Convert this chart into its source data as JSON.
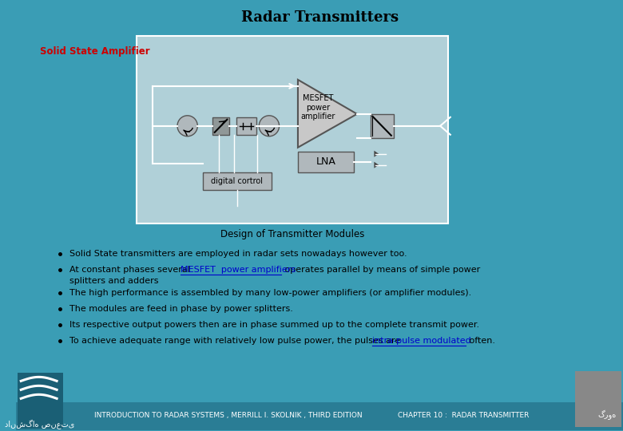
{
  "title": "Radar Transmitters",
  "subtitle_label": "Solid State Amplifier",
  "diagram_caption": "Design of Transmitter Modules",
  "bg_color": "#3a9db5",
  "title_color": "#000000",
  "subtitle_color": "#cc0000",
  "text_color": "#000000",
  "box_color": "#b0c8d0",
  "diagram_bg": "#b0d0d8",
  "footer_left": "INTRODUCTION TO RADAR SYSTEMS , MERRILL I. SKOLNIK , THIRD EDITION",
  "footer_mid": "CHAPTER 10 :  RADAR TRANSMITTER",
  "footer_right": "گروه",
  "footer_left2": "دانشگاه صنعتی"
}
